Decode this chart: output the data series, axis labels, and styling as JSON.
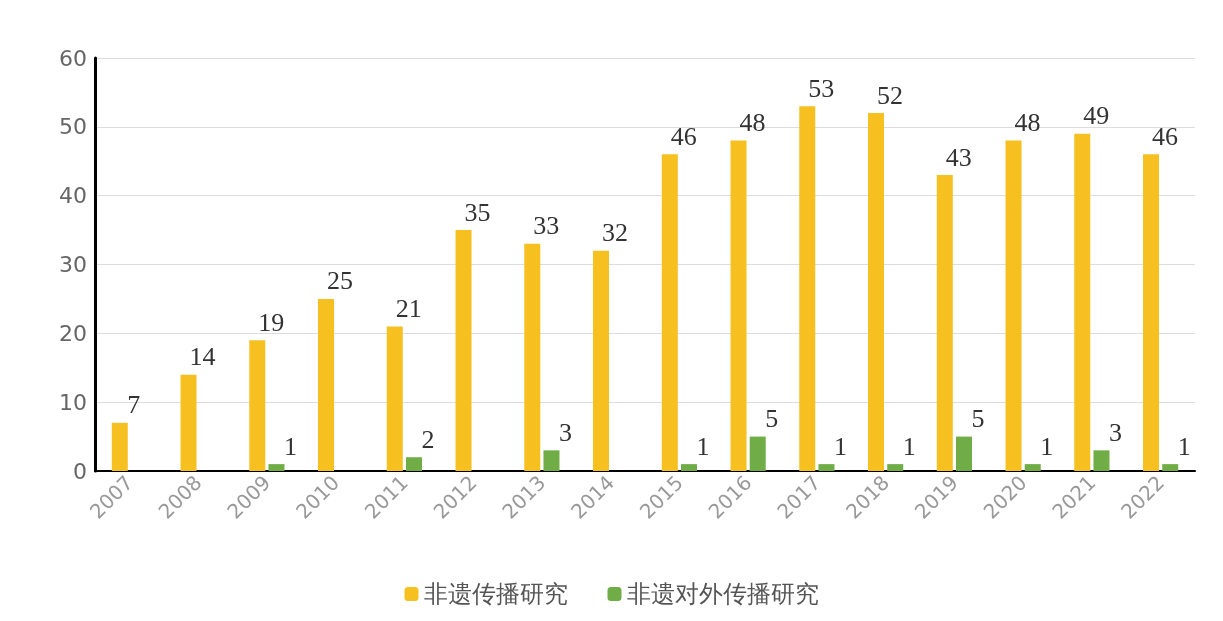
{
  "chart_data": {
    "type": "bar",
    "categories": [
      "2007",
      "2008",
      "2009",
      "2010",
      "2011",
      "2012",
      "2013",
      "2014",
      "2015",
      "2016",
      "2017",
      "2018",
      "2019",
      "2020",
      "2021",
      "2022"
    ],
    "series": [
      {
        "name": "非遗传播研究",
        "color": "#f5c020",
        "values": [
          7,
          14,
          19,
          25,
          21,
          35,
          33,
          32,
          46,
          48,
          53,
          52,
          43,
          48,
          49,
          46
        ]
      },
      {
        "name": "非遗对外传播研究",
        "color": "#70ad47",
        "values": [
          null,
          null,
          1,
          null,
          2,
          null,
          3,
          null,
          1,
          5,
          1,
          1,
          5,
          1,
          3,
          1
        ]
      }
    ],
    "ylim": [
      0,
      60
    ],
    "yticks": [
      0,
      10,
      20,
      30,
      40,
      50,
      60
    ],
    "grid": "y",
    "legend": "bottom",
    "data_labels": true
  }
}
